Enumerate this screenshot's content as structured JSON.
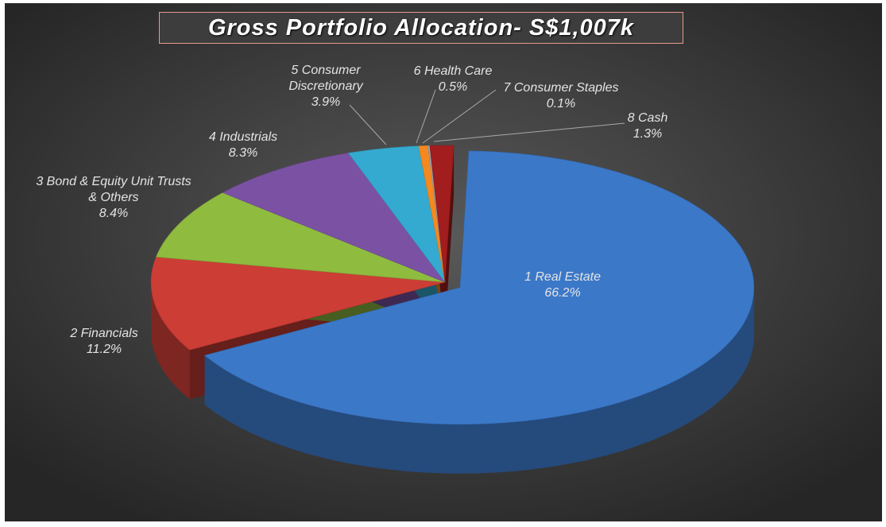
{
  "chart_data": {
    "type": "pie",
    "title": "Gross Portfolio Allocation- S$1,007k",
    "categories": [
      "1 Real Estate",
      "2 Financials",
      "3 Bond & Equity Unit Trusts & Others",
      "4 Industrials",
      "5 Consumer Discretionary",
      "6 Health Care",
      "7 Consumer Staples",
      "8 Cash"
    ],
    "values": [
      66.2,
      11.2,
      8.4,
      8.3,
      3.9,
      0.5,
      0.1,
      1.3
    ],
    "value_labels": [
      "66.2%",
      "11.2%",
      "8.4%",
      "8.3%",
      "3.9%",
      "0.5%",
      "0.1%",
      "1.3%"
    ],
    "colors": [
      "#3b78c8",
      "#cc3d35",
      "#8fbb3f",
      "#7b52a3",
      "#34aad0",
      "#f5891f",
      "#9aa3ad",
      "#a21d1d"
    ]
  }
}
